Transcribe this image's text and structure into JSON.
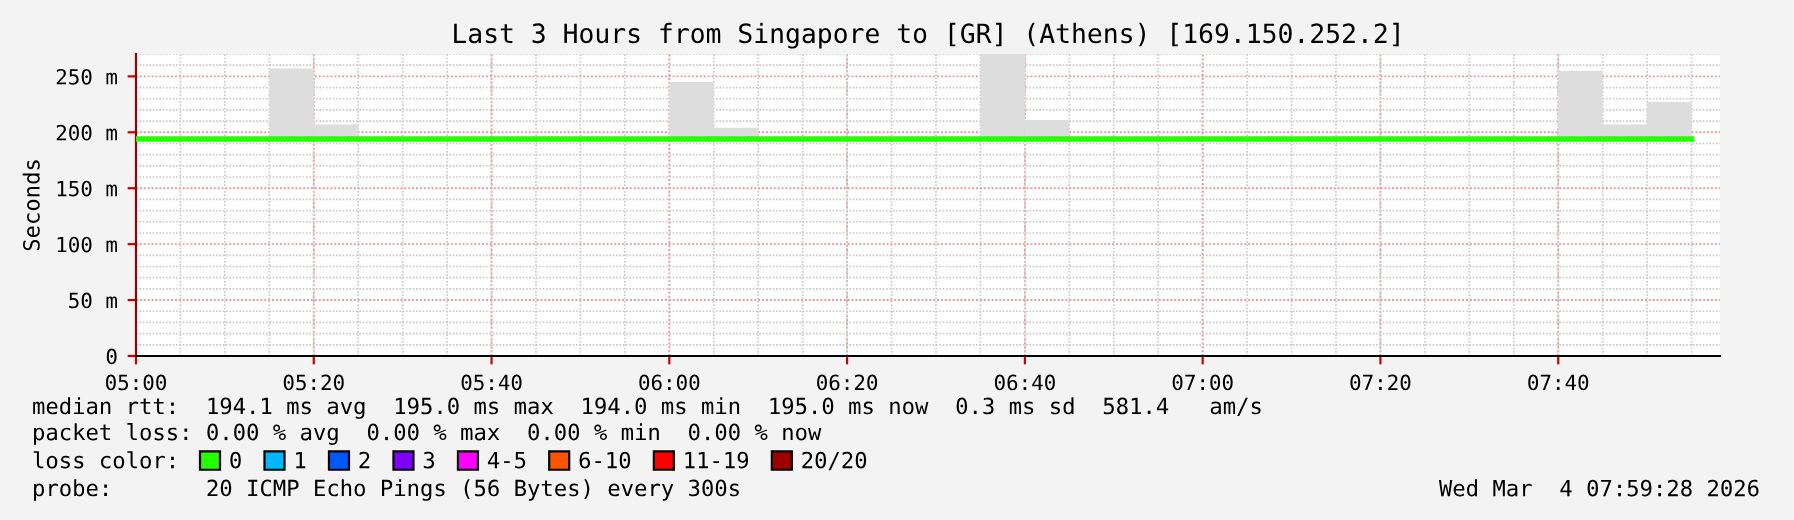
{
  "chart_data": {
    "type": "bar",
    "title": "Last 3 Hours from Singapore to [GR] (Athens) [169.150.252.2]",
    "ylabel": "Seconds",
    "xlim": [
      5.0,
      7.97
    ],
    "xticks": [
      {
        "value": 5.0,
        "label": "05:00"
      },
      {
        "value": 5.3333,
        "label": "05:20"
      },
      {
        "value": 5.6667,
        "label": "05:40"
      },
      {
        "value": 6.0,
        "label": "06:00"
      },
      {
        "value": 6.3333,
        "label": "06:20"
      },
      {
        "value": 6.6667,
        "label": "06:40"
      },
      {
        "value": 7.0,
        "label": "07:00"
      },
      {
        "value": 7.3333,
        "label": "07:20"
      },
      {
        "value": 7.6667,
        "label": "07:40"
      }
    ],
    "ylim": [
      0,
      270
    ],
    "yticks": [
      {
        "value": 0,
        "label": "0"
      },
      {
        "value": 50,
        "label": "50 m"
      },
      {
        "value": 100,
        "label": "100 m"
      },
      {
        "value": 150,
        "label": "150 m"
      },
      {
        "value": 200,
        "label": "200 m"
      },
      {
        "value": 250,
        "label": "250 m"
      }
    ],
    "grid": true,
    "legend": "bottom",
    "legend_title": "loss color:",
    "series": [
      {
        "color": "#dddddd",
        "x": [
          5.2917,
          5.375,
          6.0417,
          6.125,
          6.625,
          6.7083,
          7.7083,
          7.7917,
          7.875
        ],
        "base": [
          194,
          194,
          194,
          194,
          194,
          194,
          194,
          194,
          194
        ],
        "values": [
          63,
          13,
          51,
          10,
          76,
          17,
          61,
          13,
          33
        ]
      },
      {
        "type": "line",
        "name": "0",
        "color": "#26ff00",
        "x": [
          5.0,
          7.9167
        ],
        "values": [
          194,
          194
        ]
      },
      {
        "type": "line",
        "name": "1",
        "color": "#00b8ff"
      },
      {
        "type": "line",
        "name": "2",
        "color": "#0059ff"
      },
      {
        "type": "line",
        "name": "3",
        "color": "#7e00ff"
      },
      {
        "type": "line",
        "name": "4-5",
        "color": "#ff00ff"
      },
      {
        "type": "line",
        "name": "6-10",
        "color": "#ff5500"
      },
      {
        "type": "line",
        "name": "11-19",
        "color": "#ff0000"
      },
      {
        "type": "line",
        "name": "20/20",
        "color": "#a10000"
      }
    ],
    "annotations": [
      "median rtt:  194.1 ms avg  195.0 ms max  194.0 ms min  195.0 ms now  0.3 ms sd  581.4   am/s",
      "packet loss: 0.00 % avg  0.00 % max  0.00 % min  0.00 % now",
      "probe:       20 ICMP Echo Pings (56 Bytes) every 300s",
      "Wed Mar  4 07:59:28 2026"
    ]
  }
}
